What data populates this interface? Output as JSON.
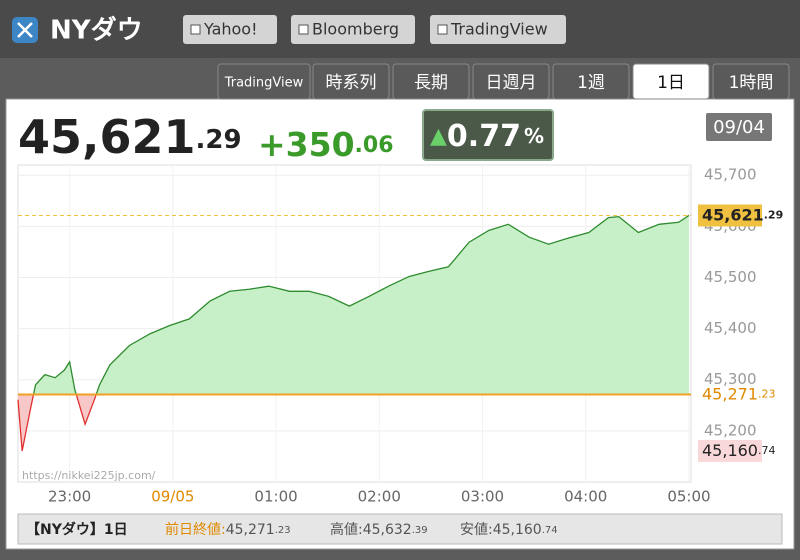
{
  "header": {
    "title": "NYダウ",
    "links": [
      "Yahoo!",
      "Bloomberg",
      "TradingView"
    ]
  },
  "tabs": {
    "items": [
      "TradingView",
      "時系列",
      "長期",
      "日週月",
      "1週",
      "1日",
      "1時間"
    ],
    "active": 5
  },
  "quote": {
    "price_int": "45,621",
    "price_dec": ".29",
    "change_int": "+350",
    "change_dec": ".06",
    "pct_arrow": "▲",
    "pct": "0.77",
    "pct_unit": "%",
    "date": "09/04"
  },
  "chart_data": {
    "type": "line",
    "x": [
      22.5,
      22.54,
      22.62,
      22.67,
      22.76,
      22.86,
      22.95,
      23.0,
      23.05,
      23.15,
      23.24,
      23.29,
      23.39,
      23.58,
      23.78,
      23.97,
      24.16,
      24.36,
      24.55,
      24.74,
      24.93,
      25.13,
      25.32,
      25.51,
      25.71,
      25.9,
      26.09,
      26.29,
      26.48,
      26.67,
      26.87,
      27.06,
      27.25,
      27.45,
      27.64,
      27.83,
      28.03,
      28.22,
      28.32,
      28.51,
      28.71,
      28.9,
      29.0
    ],
    "values": [
      45261,
      45160.74,
      45242,
      45290,
      45310,
      45304,
      45319,
      45335,
      45281,
      45213,
      45261,
      45290,
      45329,
      45367,
      45390,
      45406,
      45419,
      45454,
      45473,
      45477,
      45483,
      45473,
      45473,
      45463,
      45444,
      45463,
      45483,
      45502,
      45512,
      45521,
      45569,
      45592,
      45604,
      45579,
      45565,
      45577,
      45588,
      45617,
      45619,
      45588,
      45604,
      45608,
      45621.29
    ],
    "color": "#2e8b2e",
    "down_color": "#e03030",
    "ylim": [
      45100,
      45720
    ],
    "yticks": [
      {
        "value": 45700,
        "label": "45,700"
      },
      {
        "value": 45600,
        "label": "45,600"
      },
      {
        "value": 45500,
        "label": "45,500"
      },
      {
        "value": 45400,
        "label": "45,400"
      },
      {
        "value": 45300,
        "label": "45,300"
      },
      {
        "value": 45200,
        "label": "45,200"
      }
    ],
    "xlim": [
      22.5,
      29.02
    ],
    "xticks": [
      {
        "value": 23,
        "label": "23:00"
      },
      {
        "value": 24,
        "label": "09/05"
      },
      {
        "value": 25,
        "label": "01:00"
      },
      {
        "value": 26,
        "label": "02:00"
      },
      {
        "value": 27,
        "label": "03:00"
      },
      {
        "value": 28,
        "label": "04:00"
      },
      {
        "value": 29,
        "label": "05:00"
      }
    ],
    "grid": true,
    "markers": [
      {
        "value": 45621.29,
        "int": "45,621",
        "dec": ".29",
        "color": "#f0c040"
      },
      {
        "value": 45271.23,
        "int": "45,271",
        "dec": ".23",
        "color": "#f0a020"
      },
      {
        "value": 45160.74,
        "int": "45,160",
        "dec": ".74",
        "color": "#f8d8d8"
      }
    ],
    "watermark": "https://nikkei225jp.com/"
  },
  "footer": {
    "name": "【NYダウ】1日",
    "items": [
      {
        "label": "前日終値:",
        "int": "45,271",
        "dec": ".23"
      },
      {
        "label": "高値:",
        "int": "45,632",
        "dec": ".39"
      },
      {
        "label": "安値:",
        "int": "45,160",
        "dec": ".74"
      }
    ]
  }
}
